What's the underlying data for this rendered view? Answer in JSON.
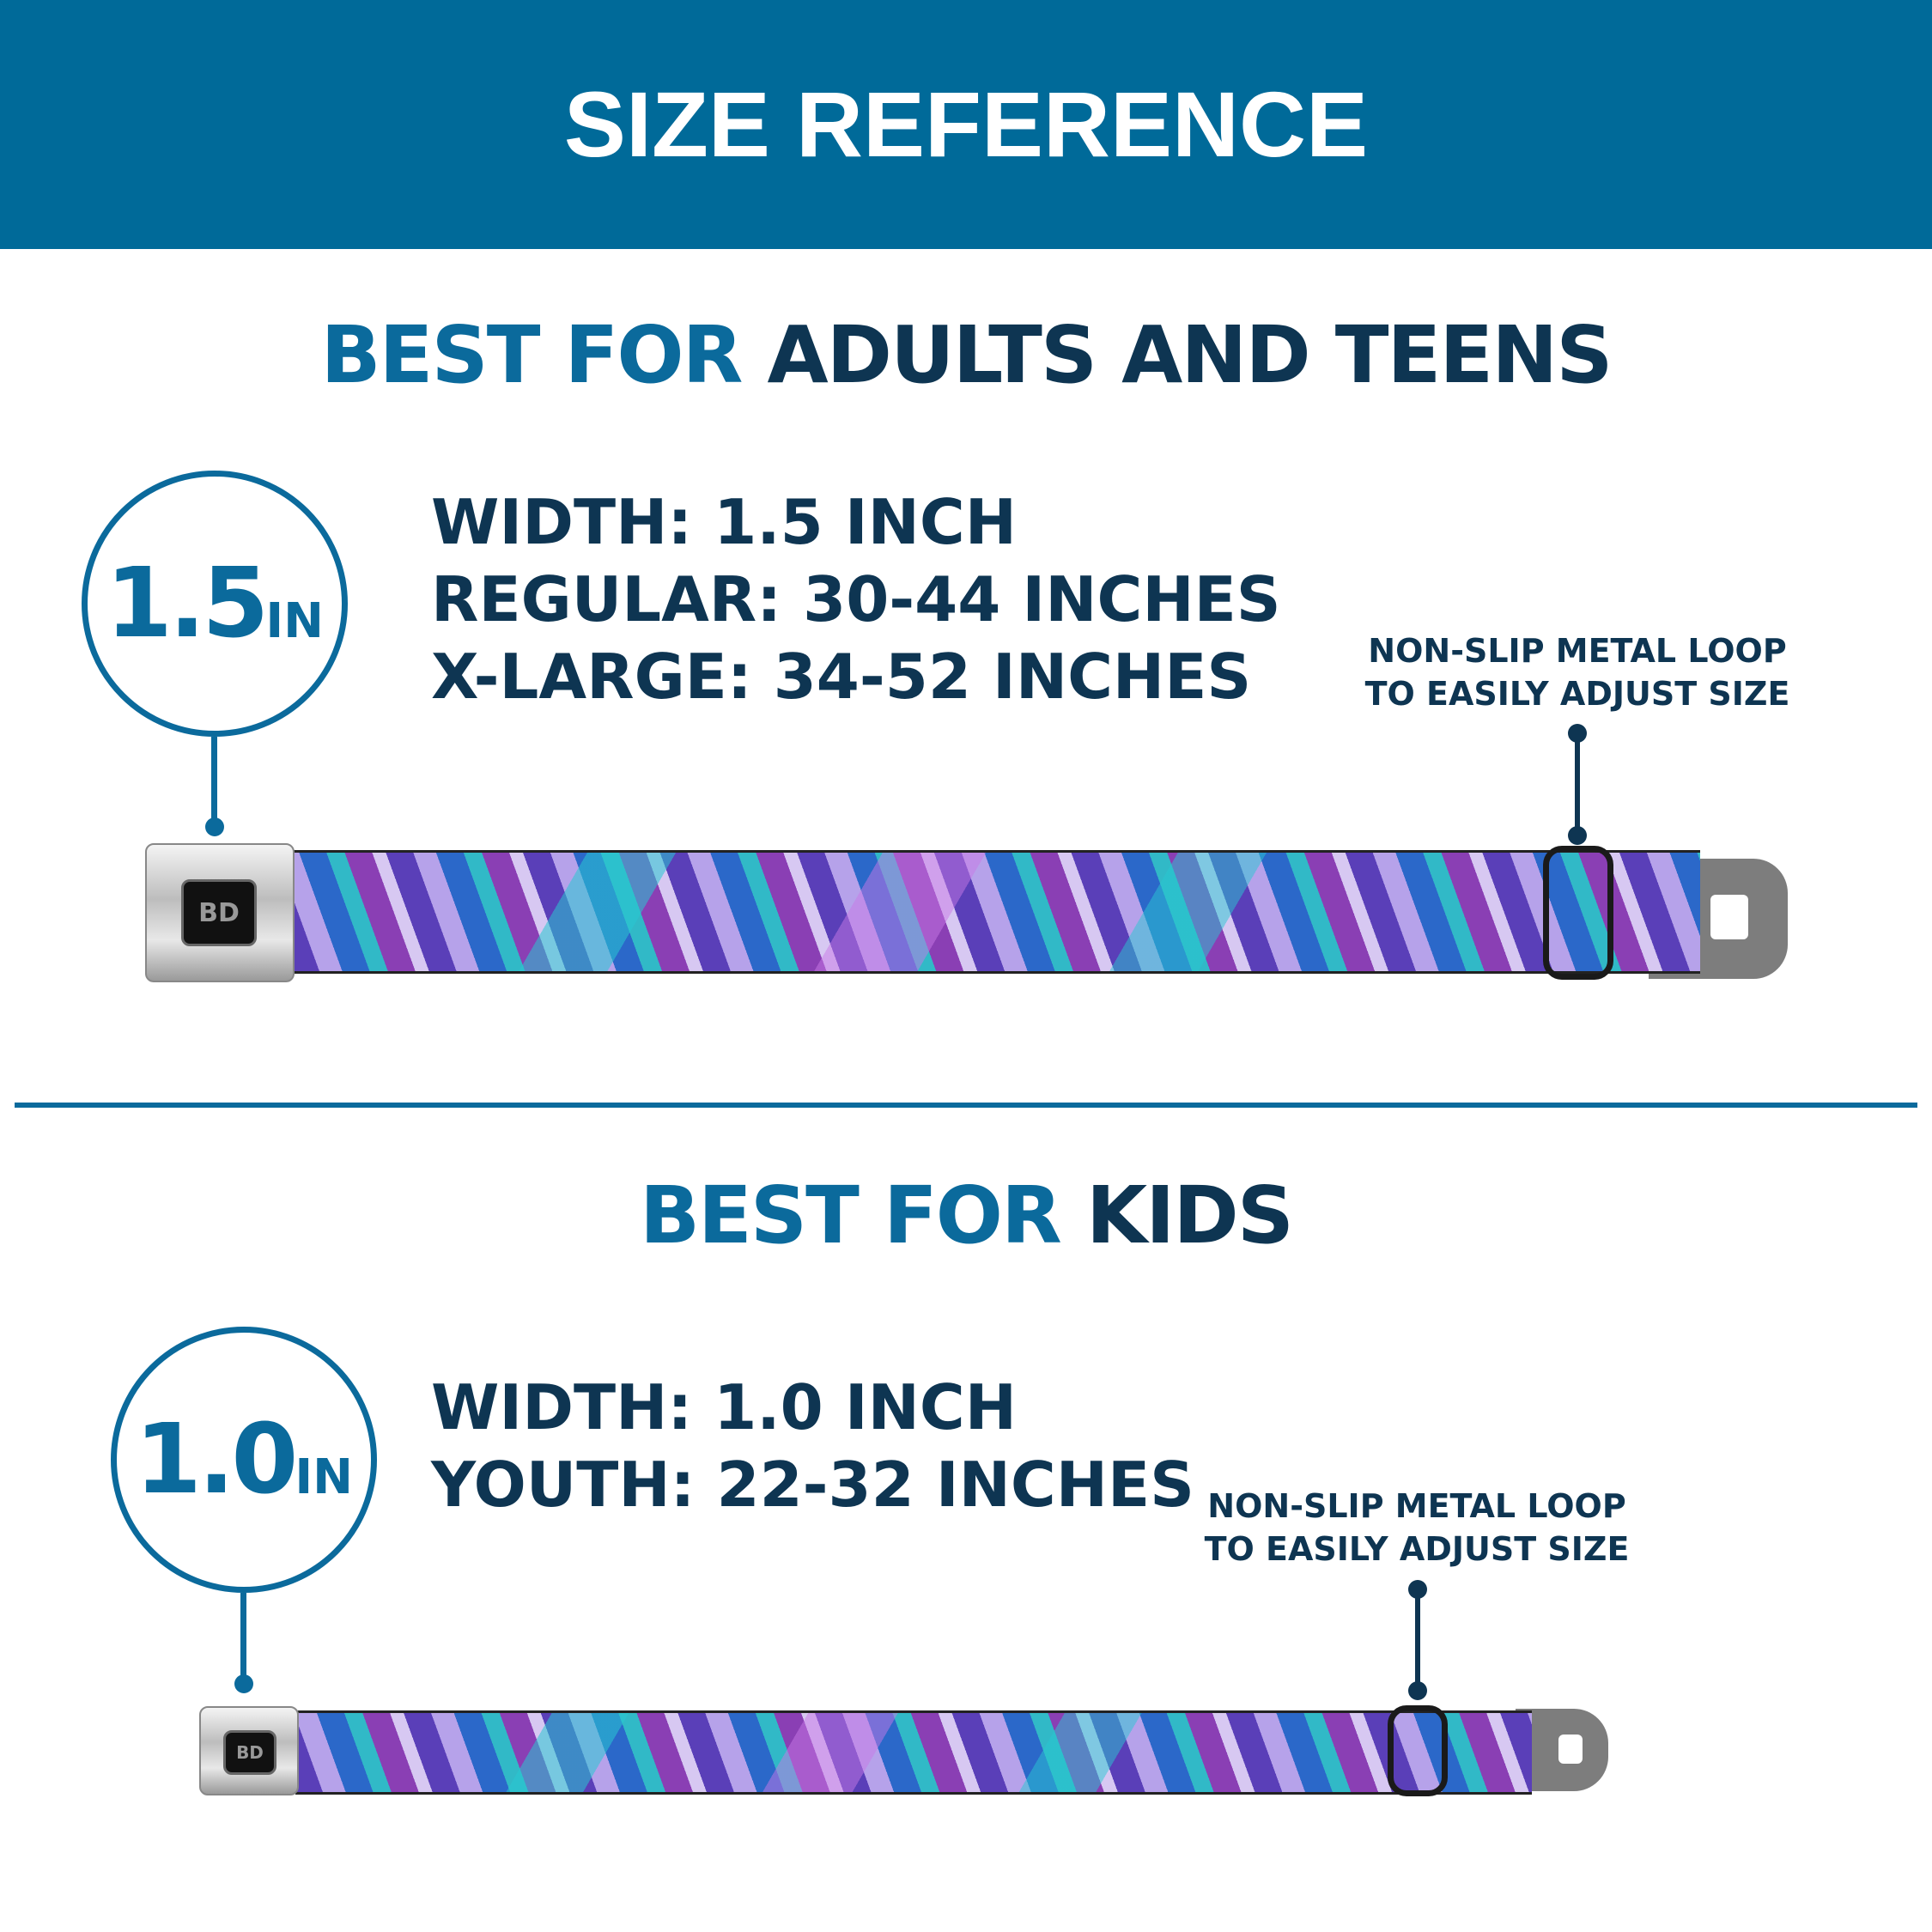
{
  "header": {
    "title": "SIZE REFERENCE"
  },
  "colors": {
    "header_bg": "#006a99",
    "accent_blue": "#0b6a9c",
    "navy": "#0e3552"
  },
  "adults": {
    "heading_accent": "BEST FOR",
    "heading_main": "ADULTS AND TEENS",
    "badge_number": "1.5",
    "badge_unit": "IN",
    "specs": [
      "WIDTH: 1.5 INCH",
      "REGULAR: 30-44 INCHES",
      "X-LARGE: 34-52 INCHES"
    ],
    "loop_label": [
      "NON-SLIP METAL LOOP",
      "TO EASILY ADJUST SIZE"
    ],
    "buckle_logo": "BD"
  },
  "kids": {
    "heading_accent": "BEST FOR",
    "heading_main": "KIDS",
    "badge_number": "1.0",
    "badge_unit": "IN",
    "specs": [
      "WIDTH: 1.0 INCH",
      "YOUTH: 22-32 INCHES"
    ],
    "loop_label": [
      "NON-SLIP METAL LOOP",
      "TO EASILY ADJUST SIZE"
    ],
    "buckle_logo": "BD"
  }
}
